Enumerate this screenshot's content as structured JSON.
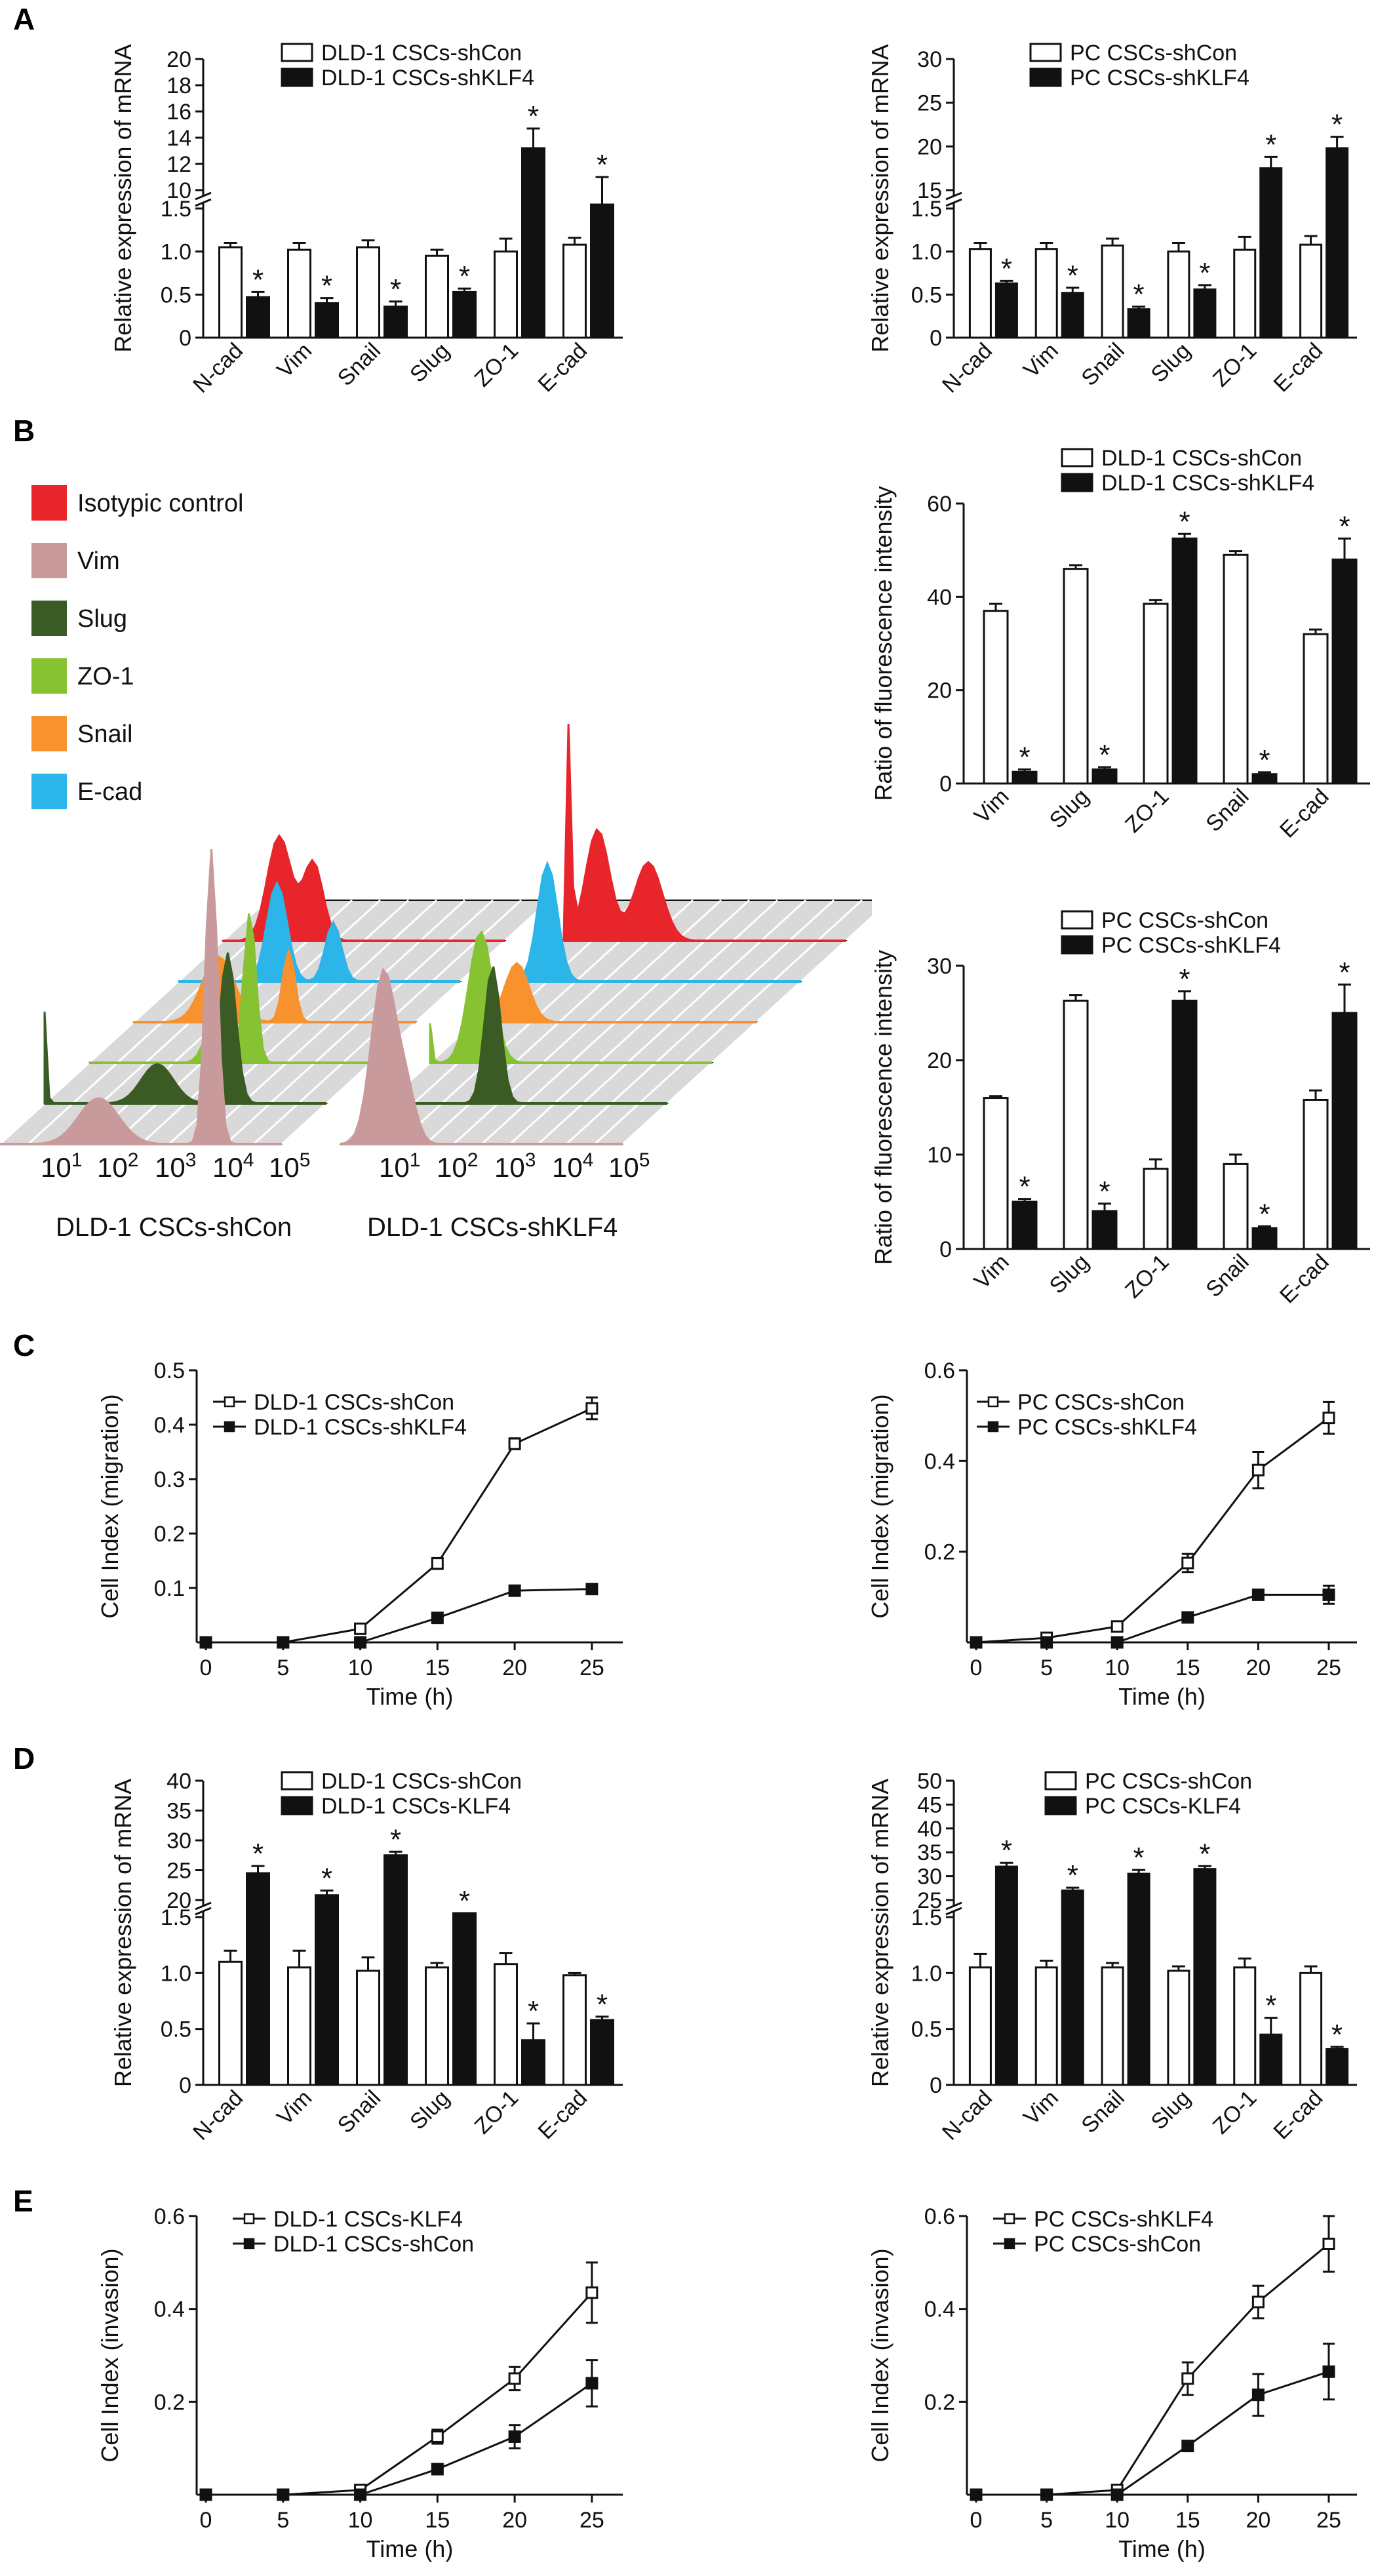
{
  "panels": [
    "A",
    "B",
    "C",
    "D",
    "E"
  ],
  "flow_legend": {
    "items": [
      {
        "label": "Isotypic control",
        "color": "#e8252a"
      },
      {
        "label": "Vim",
        "color": "#c99a9b"
      },
      {
        "label": "Slug",
        "color": "#3a5c24"
      },
      {
        "label": "ZO-1",
        "color": "#86c232"
      },
      {
        "label": "Snail",
        "color": "#f7922e"
      },
      {
        "label": "E-cad",
        "color": "#2bb5e8"
      }
    ],
    "axis_ticks": [
      "10",
      "10",
      "10",
      "10",
      "10"
    ],
    "axis_exponents": [
      "1",
      "2",
      "3",
      "4",
      "5"
    ],
    "left_caption": "DLD-1 CSCs-shCon",
    "right_caption": "DLD-1 CSCs-shKLF4"
  },
  "chart_data": [
    {
      "id": "A_left",
      "type": "bar",
      "ylabel": "Relative expression of mRNA",
      "categories": [
        "N-cad",
        "Vim",
        "Snail",
        "Slug",
        "ZO-1",
        "E-cad"
      ],
      "series": [
        {
          "name": "DLD-1 CSCs-shCon",
          "values": [
            1.05,
            1.02,
            1.05,
            0.95,
            1.0,
            1.08
          ],
          "errors": [
            0.05,
            0.08,
            0.08,
            0.07,
            0.15,
            0.08
          ]
        },
        {
          "name": "DLD-1 CSCs-shKLF4",
          "values": [
            0.47,
            0.4,
            0.36,
            0.53,
            13.2,
            9.8
          ],
          "errors": [
            0.06,
            0.06,
            0.06,
            0.04,
            1.5,
            1.2
          ]
        }
      ],
      "lower_ylim": [
        0,
        1.5
      ],
      "lower_ticks": [
        "0",
        "0.5",
        "1.0",
        "1.5"
      ],
      "upper_ylim": [
        10,
        20
      ],
      "upper_ticks": [
        "10",
        "12",
        "14",
        "16",
        "18",
        "20"
      ],
      "sig": [
        false,
        true,
        false,
        true,
        false,
        true,
        false,
        true,
        false,
        true,
        false,
        true
      ]
    },
    {
      "id": "A_right",
      "type": "bar",
      "ylabel": "Relative expression of mRNA",
      "categories": [
        "N-cad",
        "Vim",
        "Snail",
        "Slug",
        "ZO-1",
        "E-cad"
      ],
      "series": [
        {
          "name": "PC CSCs-shCon",
          "values": [
            1.03,
            1.03,
            1.07,
            1.0,
            1.02,
            1.08
          ],
          "errors": [
            0.07,
            0.07,
            0.08,
            0.1,
            0.15,
            0.1
          ]
        },
        {
          "name": "PC CSCs-shKLF4",
          "values": [
            0.63,
            0.52,
            0.33,
            0.56,
            17.5,
            19.8
          ],
          "errors": [
            0.03,
            0.06,
            0.03,
            0.05,
            1.3,
            1.3
          ]
        }
      ],
      "lower_ylim": [
        0,
        1.5
      ],
      "lower_ticks": [
        "0",
        "0.5",
        "1.0",
        "1.5"
      ],
      "upper_ylim": [
        15,
        30
      ],
      "upper_ticks": [
        "15",
        "20",
        "25",
        "30"
      ],
      "sig": [
        false,
        true,
        false,
        true,
        false,
        true,
        false,
        true,
        false,
        true,
        false,
        true
      ]
    },
    {
      "id": "B_top",
      "type": "bar",
      "ylabel": "Ratio of fluorescence intensity",
      "categories": [
        "Vim",
        "Slug",
        "ZO-1",
        "Snail",
        "E-cad"
      ],
      "series": [
        {
          "name": "DLD-1 CSCs-shCon",
          "values": [
            37,
            46,
            38.5,
            49,
            32
          ],
          "errors": [
            1.5,
            0.8,
            0.8,
            0.8,
            1.0
          ]
        },
        {
          "name": "DLD-1 CSCs-shKLF4",
          "values": [
            2.5,
            3,
            52.5,
            2,
            48
          ],
          "errors": [
            0.5,
            0.5,
            1.0,
            0.4,
            4.5
          ]
        }
      ],
      "ylim": [
        0,
        60
      ],
      "yticks": [
        "0",
        "20",
        "40",
        "60"
      ],
      "sig": [
        false,
        true,
        false,
        true,
        false,
        true,
        false,
        true,
        false,
        true
      ]
    },
    {
      "id": "B_bottom",
      "type": "bar",
      "ylabel": "Ratio of fluorescence intensity",
      "categories": [
        "Vim",
        "Slug",
        "ZO-1",
        "Snail",
        "E-cad"
      ],
      "series": [
        {
          "name": "PC CSCs-shCon",
          "values": [
            16,
            26.3,
            8.5,
            9,
            15.8
          ],
          "errors": [
            0.2,
            0.6,
            1.0,
            1.0,
            1.0
          ]
        },
        {
          "name": "PC CSCs-shKLF4",
          "values": [
            5,
            4,
            26.3,
            2.2,
            25
          ],
          "errors": [
            0.3,
            0.8,
            1.0,
            0.2,
            3.0
          ]
        }
      ],
      "ylim": [
        0,
        30
      ],
      "yticks": [
        "0",
        "10",
        "20",
        "30"
      ],
      "sig": [
        false,
        true,
        false,
        true,
        false,
        true,
        false,
        true,
        false,
        true
      ]
    },
    {
      "id": "C_left",
      "type": "line",
      "xlabel": "Time (h)",
      "ylabel": "Cell Index (migration)",
      "x": [
        0,
        5,
        10,
        15,
        20,
        25
      ],
      "xticks": [
        "0",
        "5",
        "10",
        "15",
        "20",
        "25"
      ],
      "ylim": [
        0,
        0.5
      ],
      "yticks": [
        "0.1",
        "0.2",
        "0.3",
        "0.4",
        "0.5"
      ],
      "series": [
        {
          "name": "DLD-1 CSCs-shCon",
          "marker": "open",
          "values": [
            0,
            0,
            0.025,
            0.145,
            0.365,
            0.43
          ],
          "errors": [
            0,
            0,
            0.004,
            0.01,
            0.01,
            0.02
          ]
        },
        {
          "name": "DLD-1 CSCs-shKLF4",
          "marker": "filled",
          "values": [
            0,
            0,
            0,
            0.045,
            0.095,
            0.098
          ],
          "errors": [
            0,
            0,
            0,
            0,
            0,
            0
          ]
        }
      ]
    },
    {
      "id": "C_right",
      "type": "line",
      "xlabel": "Time (h)",
      "ylabel": "Cell Index (migration)",
      "x": [
        0,
        5,
        10,
        15,
        20,
        25
      ],
      "xticks": [
        "0",
        "5",
        "10",
        "15",
        "20",
        "25"
      ],
      "ylim": [
        0,
        0.6
      ],
      "yticks": [
        "0.2",
        "0.4",
        "0.6"
      ],
      "series": [
        {
          "name": "PC CSCs-shCon",
          "marker": "open",
          "values": [
            0,
            0.01,
            0.035,
            0.175,
            0.38,
            0.495
          ],
          "errors": [
            0,
            0.005,
            0.005,
            0.02,
            0.04,
            0.035
          ]
        },
        {
          "name": "PC CSCs-shKLF4",
          "marker": "filled",
          "values": [
            0,
            0,
            0,
            0.055,
            0.105,
            0.105
          ],
          "errors": [
            0,
            0,
            0,
            0,
            0.01,
            0.02
          ]
        }
      ]
    },
    {
      "id": "D_left",
      "type": "bar",
      "ylabel": "Relative expression of mRNA",
      "categories": [
        "N-cad",
        "Vim",
        "Snail",
        "Slug",
        "ZO-1",
        "E-cad"
      ],
      "series": [
        {
          "name": "DLD-1 CSCs-shCon",
          "values": [
            1.1,
            1.05,
            1.02,
            1.05,
            1.08,
            0.98
          ],
          "errors": [
            0.1,
            0.15,
            0.12,
            0.04,
            0.1,
            0.02
          ]
        },
        {
          "name": "DLD-1 CSCs-KLF4",
          "values": [
            24.5,
            20.8,
            27.5,
            1.55,
            0.4,
            0.58
          ],
          "errors": [
            1.2,
            0.8,
            0.6,
            0.06,
            0.15,
            0.03
          ]
        }
      ],
      "lower_ylim": [
        0,
        1.5
      ],
      "lower_ticks": [
        "0",
        "0.5",
        "1.0",
        "1.5"
      ],
      "upper_ylim": [
        20,
        40
      ],
      "upper_ticks": [
        "20",
        "25",
        "30",
        "35",
        "40"
      ],
      "sig": [
        false,
        true,
        false,
        true,
        false,
        true,
        false,
        true,
        false,
        true,
        false,
        true
      ]
    },
    {
      "id": "D_right",
      "type": "bar",
      "ylabel": "Relative expression of mRNA",
      "categories": [
        "N-cad",
        "Vim",
        "Snail",
        "Slug",
        "ZO-1",
        "E-cad"
      ],
      "series": [
        {
          "name": "PC CSCs-shCon",
          "values": [
            1.05,
            1.05,
            1.05,
            1.02,
            1.05,
            1.0
          ],
          "errors": [
            0.12,
            0.06,
            0.04,
            0.04,
            0.08,
            0.06
          ]
        },
        {
          "name": "PC CSCs-KLF4",
          "values": [
            32,
            27,
            30.5,
            31.5,
            0.45,
            0.32
          ],
          "errors": [
            0.8,
            0.6,
            0.8,
            0.6,
            0.15,
            0.02
          ]
        }
      ],
      "lower_ylim": [
        0,
        1.5
      ],
      "lower_ticks": [
        "0",
        "0.5",
        "1.0",
        "1.5"
      ],
      "upper_ylim": [
        25,
        50
      ],
      "upper_ticks": [
        "25",
        "30",
        "35",
        "40",
        "45",
        "50"
      ],
      "sig": [
        false,
        true,
        false,
        true,
        false,
        true,
        false,
        true,
        false,
        true,
        false,
        true
      ]
    },
    {
      "id": "E_left",
      "type": "line",
      "xlabel": "Time (h)",
      "ylabel": "Cell Index (invasion)",
      "x": [
        0,
        5,
        10,
        15,
        20,
        25
      ],
      "xticks": [
        "0",
        "5",
        "10",
        "15",
        "20",
        "25"
      ],
      "ylim": [
        0,
        0.6
      ],
      "yticks": [
        "0.2",
        "0.4",
        "0.6"
      ],
      "series": [
        {
          "name": "DLD-1 CSCs-KLF4",
          "marker": "open",
          "values": [
            0,
            0,
            0.01,
            0.125,
            0.25,
            0.435
          ],
          "errors": [
            0,
            0,
            0.005,
            0.015,
            0.025,
            0.065
          ]
        },
        {
          "name": "DLD-1 CSCs-shCon",
          "marker": "filled",
          "values": [
            0,
            0,
            0,
            0.055,
            0.125,
            0.24
          ],
          "errors": [
            0,
            0,
            0,
            0,
            0.025,
            0.05
          ]
        }
      ]
    },
    {
      "id": "E_right",
      "type": "line",
      "xlabel": "Time (h)",
      "ylabel": "Cell Index (invasion)",
      "x": [
        0,
        5,
        10,
        15,
        20,
        25
      ],
      "xticks": [
        "0",
        "5",
        "10",
        "15",
        "20",
        "25"
      ],
      "ylim": [
        0,
        0.6
      ],
      "yticks": [
        "0.2",
        "0.4",
        "0.6"
      ],
      "series": [
        {
          "name": "PC CSCs-shKLF4",
          "marker": "open",
          "values": [
            0,
            0,
            0.01,
            0.25,
            0.415,
            0.54
          ],
          "errors": [
            0,
            0,
            0.005,
            0.035,
            0.035,
            0.06
          ]
        },
        {
          "name": "PC CSCs-shCon",
          "marker": "filled",
          "values": [
            0,
            0,
            0,
            0.105,
            0.215,
            0.265
          ],
          "errors": [
            0,
            0,
            0,
            0,
            0.045,
            0.06
          ]
        }
      ]
    }
  ]
}
